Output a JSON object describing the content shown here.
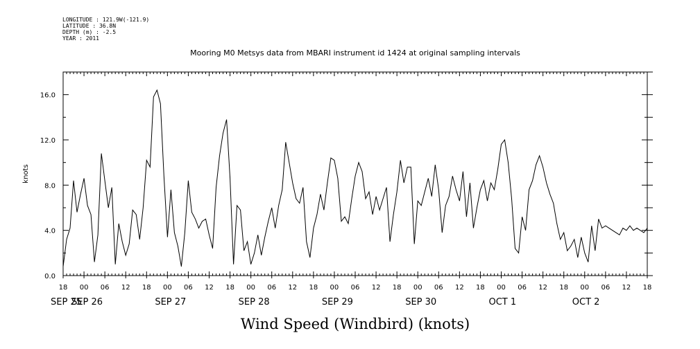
{
  "meta": {
    "longitude": "LONGITUDE : 121.9W(-121.9)",
    "latitude": "LATITUDE : 36.8N",
    "depth": "DEPTH (m) : -2.5",
    "year": "YEAR : 2011"
  },
  "chart_data": {
    "type": "line",
    "title": "Mooring M0 Metsys data from MBARI instrument id 1424 at original sampling intervals",
    "xlabel": "Wind Speed (Windbird) (knots)",
    "ylabel": "knots",
    "ylim": [
      0,
      18
    ],
    "xlim": [
      0,
      168
    ],
    "yticks": [
      "0.0",
      "4.0",
      "8.0",
      "12.0",
      "16.0"
    ],
    "xtick_hours": [
      "18",
      "00",
      "06",
      "12",
      "18",
      "00",
      "06",
      "12",
      "18",
      "00",
      "06",
      "12",
      "18",
      "00",
      "06",
      "12",
      "18",
      "00",
      "06",
      "12",
      "18",
      "00",
      "06",
      "12",
      "18",
      "00",
      "06",
      "12",
      "18"
    ],
    "day_labels": [
      {
        "label": "SEP 25",
        "hour": 0
      },
      {
        "label": "SEP 26",
        "hour": 6
      },
      {
        "label": "SEP 27",
        "hour": 30
      },
      {
        "label": "SEP 28",
        "hour": 54
      },
      {
        "label": "SEP 29",
        "hour": 78
      },
      {
        "label": "SEP 30",
        "hour": 102
      },
      {
        "label": "OCT  1",
        "hour": 126
      },
      {
        "label": "OCT  2",
        "hour": 150
      }
    ],
    "x_units": "hours after 2011-09-25 18:00",
    "series": [
      {
        "name": "",
        "x": [
          0,
          1,
          2,
          3,
          4,
          5,
          6,
          7,
          8,
          9,
          10,
          11,
          12,
          13,
          14,
          15,
          16,
          17,
          18,
          19,
          20,
          21,
          22,
          23,
          24,
          25,
          26,
          27,
          28,
          29,
          30,
          31,
          32,
          33,
          34,
          35,
          36,
          37,
          38,
          39,
          40,
          41,
          42,
          43,
          44,
          45,
          46,
          47,
          48,
          49,
          50,
          51,
          52,
          53,
          54,
          55,
          56,
          57,
          58,
          59,
          60,
          61,
          62,
          63,
          64,
          65,
          66,
          67,
          68,
          69,
          70,
          71,
          72,
          73,
          74,
          75,
          76,
          77,
          78,
          79,
          80,
          81,
          82,
          83,
          84,
          85,
          86,
          87,
          88,
          89,
          90,
          91,
          92,
          93,
          94,
          95,
          96,
          97,
          98,
          99,
          100,
          101,
          102,
          103,
          104,
          105,
          106,
          107,
          108,
          109,
          110,
          111,
          112,
          113,
          114,
          115,
          116,
          117,
          118,
          119,
          120,
          121,
          122,
          123,
          124,
          125,
          126,
          127,
          128,
          129,
          130,
          131,
          132,
          133,
          134,
          135,
          136,
          137,
          138,
          139,
          140,
          141,
          142,
          143,
          144,
          145,
          146,
          147,
          148,
          149,
          150,
          151,
          152,
          153,
          154,
          155,
          156,
          157,
          158,
          159,
          160,
          161,
          162,
          163,
          164,
          165,
          166,
          167,
          168
        ],
        "values": [
          0.8,
          3.2,
          4.2,
          8.4,
          5.6,
          7.2,
          8.6,
          6.2,
          5.4,
          1.2,
          3.6,
          10.8,
          8.4,
          6.0,
          7.8,
          1.0,
          4.6,
          3.0,
          1.8,
          2.8,
          5.8,
          5.4,
          3.2,
          6.0,
          10.2,
          9.6,
          15.8,
          16.4,
          15.2,
          8.8,
          3.4,
          7.6,
          3.8,
          2.6,
          0.8,
          3.8,
          8.4,
          5.6,
          5.0,
          4.2,
          4.8,
          5.0,
          3.6,
          2.4,
          7.8,
          10.6,
          12.6,
          13.8,
          8.6,
          1.0,
          6.2,
          5.8,
          2.2,
          3.0,
          1.0,
          2.0,
          3.6,
          1.8,
          3.4,
          4.8,
          6.0,
          4.2,
          6.2,
          7.6,
          11.8,
          10.0,
          8.2,
          6.8,
          6.4,
          7.8,
          3.0,
          1.6,
          4.2,
          5.4,
          7.2,
          5.8,
          8.2,
          10.4,
          10.2,
          8.6,
          4.8,
          5.2,
          4.6,
          6.8,
          8.8,
          10.0,
          9.2,
          6.8,
          7.4,
          5.4,
          7.0,
          5.8,
          6.8,
          7.8,
          3.0,
          5.4,
          7.4,
          10.2,
          8.2,
          9.6,
          9.6,
          2.8,
          6.6,
          6.2,
          7.4,
          8.6,
          7.0,
          9.8,
          7.6,
          3.8,
          6.2,
          7.0,
          8.8,
          7.6,
          6.6,
          9.2,
          5.2,
          8.2,
          4.2,
          6.0,
          7.6,
          8.4,
          6.6,
          8.2,
          7.6,
          9.4,
          11.6,
          12.0,
          10.0,
          6.8,
          2.4,
          2.0,
          5.2,
          4.0,
          7.6,
          8.4,
          9.8,
          10.6,
          9.6,
          8.2,
          7.2,
          6.4,
          4.6,
          3.2,
          3.8,
          2.2,
          2.6,
          3.2,
          1.6,
          3.4,
          2.0,
          1.2,
          4.4,
          2.2,
          5.0,
          4.2,
          4.4,
          4.2,
          4.0,
          3.8,
          3.6,
          4.2,
          4.0,
          4.4,
          4.0,
          4.2,
          4.0,
          3.8,
          4.2
        ]
      }
    ]
  }
}
